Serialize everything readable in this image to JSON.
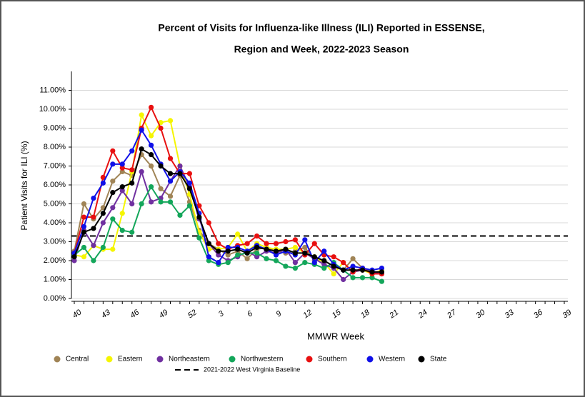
{
  "chart_data": {
    "type": "line",
    "title": [
      "Percent of Visits for Influenza-like Illness (ILI) Reported in ESSENSE,",
      "Region and Week, 2022-2023 Season"
    ],
    "x_label": "MMWR Week",
    "y_label": "Patient Visits for ILI (%)",
    "categories": [
      "40",
      null,
      null,
      "43",
      null,
      null,
      "46",
      null,
      null,
      "49",
      null,
      null,
      "52",
      null,
      null,
      "3",
      null,
      null,
      "6",
      null,
      null,
      "9",
      null,
      null,
      "12",
      null,
      null,
      "15",
      null,
      null,
      "18",
      null,
      null,
      "21",
      null,
      null,
      "24",
      null,
      null,
      "27",
      null,
      null,
      "30",
      null,
      null,
      "33",
      null,
      null,
      "36",
      null,
      null,
      "39"
    ],
    "ylim": [
      0,
      12
    ],
    "yticks": [
      {
        "value": 0,
        "label": "0.00%"
      },
      {
        "value": 1,
        "label": "1.00%"
      },
      {
        "value": 2,
        "label": "2.00%"
      },
      {
        "value": 3,
        "label": "3.00%"
      },
      {
        "value": 4,
        "label": "4.00%"
      },
      {
        "value": 5,
        "label": "5.00%"
      },
      {
        "value": 6,
        "label": "6.00%"
      },
      {
        "value": 7,
        "label": "7.00%"
      },
      {
        "value": 8,
        "label": "8.00%"
      },
      {
        "value": 9,
        "label": "9.00%"
      },
      {
        "value": 10,
        "label": "10.00%"
      },
      {
        "value": 11,
        "label": "11.00%"
      }
    ],
    "grid": true,
    "series": [
      {
        "name": "Central",
        "color": "#a08456",
        "values": [
          2.5,
          5.0,
          4.2,
          4.8,
          6.2,
          6.7,
          6.5,
          7.6,
          7.0,
          5.8,
          5.4,
          6.5,
          5.1,
          3.6,
          2.9,
          2.6,
          2.3,
          2.5,
          2.1,
          2.6,
          2.7,
          2.5,
          2.4,
          2.5,
          2.7,
          2.0,
          2.0,
          1.7,
          1.5,
          2.1,
          1.6,
          1.4,
          1.3,
          null,
          null,
          null,
          null,
          null,
          null,
          null,
          null,
          null,
          null,
          null,
          null,
          null,
          null,
          null,
          null,
          null,
          null,
          null
        ]
      },
      {
        "name": "Eastern",
        "color": "#f5f500",
        "values": [
          2.3,
          2.2,
          2.8,
          2.6,
          2.6,
          4.5,
          6.7,
          9.7,
          8.6,
          9.3,
          9.4,
          7.0,
          5.5,
          3.5,
          2.6,
          2.6,
          2.7,
          3.4,
          2.5,
          2.9,
          2.7,
          2.6,
          2.6,
          2.7,
          2.4,
          2.2,
          1.9,
          1.3,
          1.9,
          1.4,
          1.5,
          1.3,
          1.5,
          null,
          null,
          null,
          null,
          null,
          null,
          null,
          null,
          null,
          null,
          null,
          null,
          null,
          null,
          null,
          null,
          null,
          null,
          null
        ]
      },
      {
        "name": "Northeastern",
        "color": "#7030a0",
        "values": [
          2.0,
          3.6,
          2.8,
          4.0,
          4.8,
          5.7,
          5.0,
          6.7,
          5.1,
          5.3,
          6.2,
          7.0,
          5.9,
          4.2,
          2.9,
          2.3,
          2.0,
          2.2,
          2.5,
          2.2,
          2.5,
          2.4,
          2.6,
          1.9,
          2.4,
          2.1,
          1.8,
          1.6,
          1.0,
          1.4,
          1.5,
          1.4,
          1.3,
          null,
          null,
          null,
          null,
          null,
          null,
          null,
          null,
          null,
          null,
          null,
          null,
          null,
          null,
          null,
          null,
          null,
          null,
          null
        ]
      },
      {
        "name": "Northwestern",
        "color": "#13a65a",
        "values": [
          2.3,
          2.7,
          2.0,
          2.7,
          4.2,
          3.6,
          3.5,
          5.0,
          5.9,
          5.1,
          5.1,
          4.4,
          4.9,
          3.2,
          2.0,
          1.8,
          1.9,
          2.3,
          2.4,
          2.4,
          2.1,
          2.0,
          1.7,
          1.6,
          1.9,
          1.8,
          1.6,
          1.9,
          1.5,
          1.1,
          1.1,
          1.1,
          0.9,
          null,
          null,
          null,
          null,
          null,
          null,
          null,
          null,
          null,
          null,
          null,
          null,
          null,
          null,
          null,
          null,
          null,
          null,
          null
        ]
      },
      {
        "name": "Southern",
        "color": "#e81010",
        "values": [
          2.4,
          4.3,
          4.3,
          6.4,
          7.8,
          6.9,
          6.8,
          9.0,
          10.1,
          9.0,
          7.4,
          6.6,
          6.6,
          4.9,
          4.0,
          2.9,
          2.6,
          2.8,
          2.9,
          3.3,
          2.9,
          2.9,
          3.0,
          3.1,
          2.3,
          2.9,
          2.3,
          2.2,
          1.9,
          1.4,
          1.6,
          1.3,
          1.3,
          null,
          null,
          null,
          null,
          null,
          null,
          null,
          null,
          null,
          null,
          null,
          null,
          null,
          null,
          null,
          null,
          null,
          null,
          null
        ]
      },
      {
        "name": "Western",
        "color": "#1010e8",
        "values": [
          2.4,
          3.8,
          5.3,
          6.1,
          7.1,
          7.1,
          7.8,
          8.9,
          8.1,
          7.1,
          6.2,
          6.7,
          6.1,
          4.5,
          2.2,
          1.9,
          2.7,
          2.7,
          2.5,
          2.8,
          2.6,
          2.3,
          2.5,
          2.3,
          3.1,
          1.9,
          2.5,
          1.8,
          1.5,
          1.7,
          1.6,
          1.5,
          1.6,
          null,
          null,
          null,
          null,
          null,
          null,
          null,
          null,
          null,
          null,
          null,
          null,
          null,
          null,
          null,
          null,
          null,
          null,
          null
        ]
      },
      {
        "name": "State",
        "color": "#000000",
        "values": [
          2.2,
          3.5,
          3.7,
          4.5,
          5.6,
          5.9,
          6.1,
          7.9,
          7.6,
          7.0,
          6.6,
          6.6,
          5.8,
          4.3,
          2.9,
          2.5,
          2.5,
          2.6,
          2.4,
          2.7,
          2.6,
          2.5,
          2.6,
          2.4,
          2.4,
          2.2,
          2.0,
          1.7,
          1.5,
          1.5,
          1.5,
          1.4,
          1.4,
          null,
          null,
          null,
          null,
          null,
          null,
          null,
          null,
          null,
          null,
          null,
          null,
          null,
          null,
          null,
          null,
          null,
          null,
          null
        ]
      }
    ],
    "baseline": {
      "name": "2021-2022 West Virginia Baseline",
      "value": 3.3,
      "color": "#000000"
    }
  }
}
